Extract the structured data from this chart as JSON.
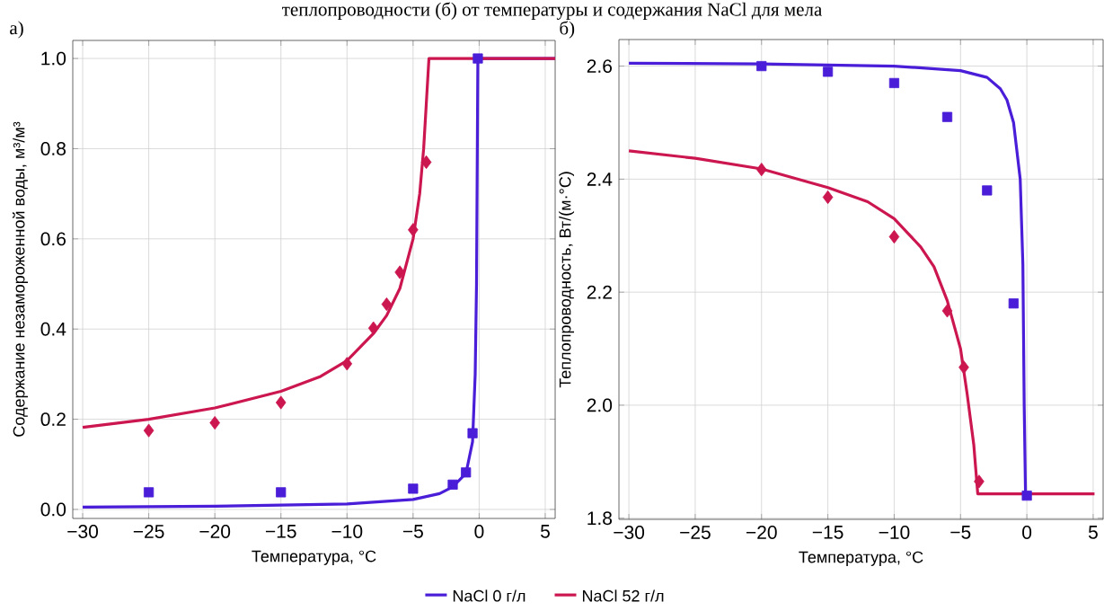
{
  "chart_data": [
    {
      "type": "line",
      "title": "а)",
      "annotations": [
        "теплопроводности (б) от температуры и содержания NaCl для мела"
      ],
      "xlabel": "Температура, °C",
      "ylabel": "Содержание незамороженной воды, м³/м³",
      "xlim": [
        -30.75,
        5.75
      ],
      "ylim": [
        -0.02,
        1.04
      ],
      "xticks": [
        {
          "value": -30,
          "label": "−30"
        },
        {
          "value": -25,
          "label": "−25"
        },
        {
          "value": -20,
          "label": "−20"
        },
        {
          "value": -15,
          "label": "−15"
        },
        {
          "value": -10,
          "label": "−10"
        },
        {
          "value": -5,
          "label": "−5"
        },
        0,
        5
      ],
      "yticks": [
        {
          "value": 0,
          "label": "0.0"
        },
        0.2,
        0.4,
        0.6,
        0.8,
        {
          "value": 1,
          "label": "1.0"
        }
      ],
      "grid": true,
      "legend": "bottom",
      "series": [
        {
          "name": "NaCl 0 г/л",
          "color": "#4a1ed8",
          "x": [
            -30,
            -20,
            -10,
            -5,
            -3,
            -2,
            -1,
            -0.5,
            -0.3,
            -0.2,
            -0.1,
            0,
            5.75
          ],
          "values": [
            0.005,
            0.007,
            0.012,
            0.022,
            0.035,
            0.05,
            0.08,
            0.15,
            0.3,
            0.5,
            1.0,
            1.0,
            1.0
          ]
        },
        {
          "name": "NaCl 52 г/л",
          "color": "#cc1650",
          "x": [
            -30,
            -25,
            -20,
            -15,
            -12,
            -10,
            -8,
            -7,
            -6,
            -5,
            -4.5,
            -4.2,
            -4,
            -3.8,
            5.75
          ],
          "values": [
            0.182,
            0.2,
            0.225,
            0.262,
            0.295,
            0.33,
            0.39,
            0.43,
            0.49,
            0.6,
            0.7,
            0.8,
            0.9,
            1.0,
            1.0
          ]
        },
        {
          "color": "#4a1ed8",
          "type": "scatter",
          "marker": "square",
          "x": [
            -25,
            -15,
            -5,
            -2,
            -1,
            -0.5,
            -0.1
          ],
          "values": [
            0.038,
            0.038,
            0.046,
            0.055,
            0.082,
            0.169,
            1.0
          ]
        },
        {
          "color": "#cc1650",
          "type": "scatter",
          "marker": "diamond",
          "x": [
            -25,
            -20,
            -15,
            -10,
            -8,
            -7,
            -6,
            -5,
            -4
          ],
          "values": [
            0.175,
            0.192,
            0.237,
            0.323,
            0.402,
            0.455,
            0.526,
            0.62,
            0.77
          ]
        }
      ]
    },
    {
      "type": "line",
      "title": "б)",
      "xlabel": "Температура, °C",
      "ylabel": "Теплопроводность, Вт/(м·°C)",
      "xlim": [
        -30.75,
        5.75
      ],
      "ylim": [
        1.798,
        2.647
      ],
      "xticks": [
        {
          "value": -30,
          "label": "−30"
        },
        {
          "value": -25,
          "label": "−25"
        },
        {
          "value": -20,
          "label": "−20"
        },
        {
          "value": -15,
          "label": "−15"
        },
        {
          "value": -10,
          "label": "−10"
        },
        {
          "value": -5,
          "label": "−5"
        },
        0,
        5
      ],
      "yticks": [
        1.8,
        {
          "value": 2,
          "label": "2.0"
        },
        2.2,
        2.4,
        2.6
      ],
      "grid": true,
      "series": [
        {
          "color": "#4a1ed8",
          "x": [
            -30,
            -20,
            -10,
            -5,
            -3,
            -2,
            -1.5,
            -1,
            -0.5,
            -0.3,
            -0.2,
            -0.1
          ],
          "values": [
            2.605,
            2.604,
            2.6,
            2.592,
            2.58,
            2.56,
            2.54,
            2.5,
            2.4,
            2.25,
            2.0,
            1.843
          ]
        },
        {
          "color": "#cc1650",
          "x": [
            -30,
            -25,
            -20,
            -15,
            -12,
            -10,
            -8,
            -7,
            -6,
            -5,
            -4.5,
            -4,
            -3.7,
            5.1
          ],
          "values": [
            2.45,
            2.437,
            2.418,
            2.385,
            2.36,
            2.33,
            2.28,
            2.245,
            2.185,
            2.1,
            2.02,
            1.93,
            1.843,
            1.843
          ]
        },
        {
          "color": "#4a1ed8",
          "type": "scatter",
          "marker": "square",
          "x": [
            -20,
            -15,
            -10,
            -6,
            -3,
            -1,
            0
          ],
          "values": [
            2.6,
            2.59,
            2.57,
            2.51,
            2.38,
            2.18,
            1.84
          ]
        },
        {
          "color": "#cc1650",
          "type": "scatter",
          "marker": "diamond",
          "x": [
            -20,
            -15,
            -10,
            -6,
            -4.75,
            -3.6
          ],
          "values": [
            2.417,
            2.368,
            2.298,
            2.167,
            2.067,
            1.865
          ]
        }
      ]
    }
  ]
}
